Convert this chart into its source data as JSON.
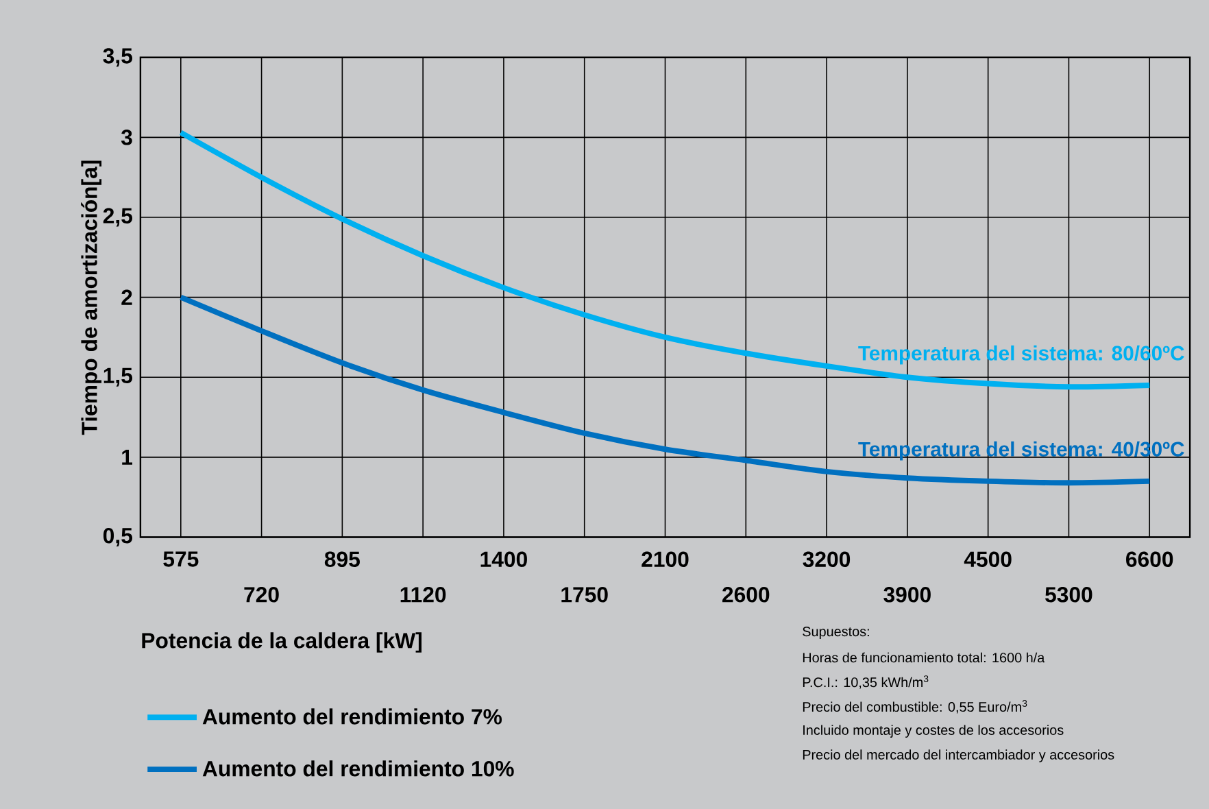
{
  "chart_data": {
    "type": "line",
    "ylabel": "Tiempo de amortización[a]",
    "categories": [
      "575",
      "720",
      "895",
      "1120",
      "1400",
      "1750",
      "2100",
      "2600",
      "3200",
      "3900",
      "4500",
      "5300",
      "6600"
    ],
    "series": [
      {
        "name": "Aumento del rendimiento 7%",
        "color": "#00b0f0",
        "values": [
          3.03,
          2.75,
          2.49,
          2.26,
          2.06,
          1.89,
          1.75,
          1.65,
          1.57,
          1.5,
          1.46,
          1.44,
          1.45
        ]
      },
      {
        "name": "Aumento del rendimiento 10%",
        "color": "#0070c0",
        "values": [
          2.0,
          1.79,
          1.59,
          1.42,
          1.28,
          1.15,
          1.05,
          0.98,
          0.91,
          0.87,
          0.85,
          0.84,
          0.85
        ]
      }
    ],
    "ylim": [
      0.5,
      3.5
    ],
    "yticks": [
      {
        "value": 0.5,
        "label": "0,5"
      },
      1,
      {
        "value": 1.5,
        "label": "1,5"
      },
      2,
      {
        "value": 2.5,
        "label": "2,5"
      },
      3,
      {
        "value": 3.5,
        "label": "3,5"
      }
    ],
    "grid": true,
    "legend": "bottom left",
    "marker": "none",
    "line_style": "solid",
    "annotations": [
      "Temperatura del sistema: 80/60ºC",
      "Temperatura del sistema: 40/30ºC",
      "Potencia de la caldera [kW]",
      "Supuestos:",
      "Horas de funcionamiento total: 1600 h/a",
      "P.C.I.: 10,35 kWh/m$^{3}$",
      "Precio del combustible: 0,55 Euro/m$^{3}$",
      "Incluido montaje y costes de los accesorios",
      "Precio del mercado del intercambiador y accesorios"
    ]
  }
}
